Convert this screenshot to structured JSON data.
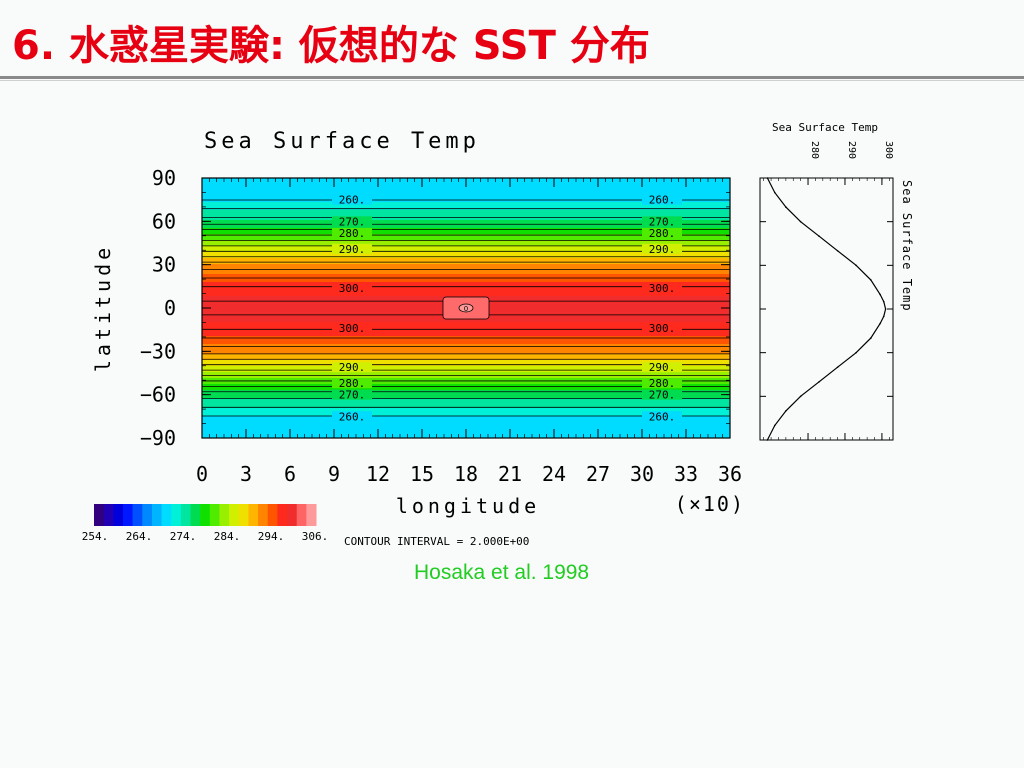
{
  "slide": {
    "title": "6. 水惑星実験: 仮想的な SST 分布",
    "title_color": "#e60012",
    "citation": "Hosaka et al. 1998",
    "citation_color": "#22cc22"
  },
  "chart_data": [
    {
      "type": "heatmap",
      "title": "Sea Surface Temp",
      "xlabel": "longitude",
      "ylabel": "latitude",
      "x_scale_note": "(×10)",
      "xlim": [
        0,
        36
      ],
      "ylim": [
        -90,
        90
      ],
      "x_ticks": [
        "0",
        "3",
        "6",
        "9",
        "12",
        "15",
        "18",
        "21",
        "24",
        "27",
        "30",
        "33",
        "36"
      ],
      "y_ticks": [
        "90",
        "60",
        "30",
        "0",
        "−30",
        "−60",
        "−90"
      ],
      "y_tick_values": [
        90,
        60,
        30,
        0,
        -30,
        -60,
        -90
      ],
      "contour_interval_text": "CONTOUR INTERVAL = 2.000E+00",
      "colorbar": {
        "labels": [
          "254.",
          "264.",
          "274.",
          "284.",
          "294.",
          "306."
        ],
        "min": 254,
        "max": 306,
        "colors": [
          "#30007e",
          "#2000b2",
          "#0000dc",
          "#0018ff",
          "#0050ff",
          "#0088ff",
          "#00b4ff",
          "#00dcff",
          "#00f0d8",
          "#00e6a0",
          "#00dc50",
          "#10e000",
          "#50ec00",
          "#98f000",
          "#d0f000",
          "#f0e000",
          "#ffb400",
          "#ff8400",
          "#ff5400",
          "#ff2a1e",
          "#f02c2c",
          "#ff6464",
          "#ff9a9a"
        ]
      },
      "contour_labels_left": [
        "260.",
        "270.",
        "280.",
        "290.",
        "300.",
        "300.",
        "290.",
        "280.",
        "270.",
        "260."
      ],
      "contour_labels_right": [
        "260.",
        "270.",
        "280.",
        "290.",
        "300.",
        "300.",
        "290.",
        "280.",
        "270.",
        "260."
      ],
      "contour_label_lats": [
        75,
        60,
        52,
        41,
        14,
        -14,
        -41,
        -52,
        -60,
        -75
      ],
      "zonal_profile": {
        "latitude": [
          90,
          75,
          60,
          45,
          30,
          15,
          5,
          0,
          -5,
          -15,
          -30,
          -45,
          -60,
          -75,
          -90
        ],
        "sst": [
          271,
          272,
          277,
          285,
          293,
          298,
          300,
          301,
          300,
          298,
          293,
          285,
          277,
          272,
          271
        ]
      },
      "warm_anomaly": {
        "longitude": 18,
        "latitude": 0,
        "label": "0"
      }
    },
    {
      "type": "line",
      "title": "Sea Surface Temp",
      "xlabel": "Sea Surface Temp",
      "x_ticks": [
        "280",
        "290",
        "300"
      ],
      "x_tick_values": [
        280,
        290,
        300
      ],
      "xlim": [
        267,
        303
      ],
      "ylim": [
        -90,
        90
      ],
      "series": [
        {
          "latitude": [
            90,
            80,
            70,
            60,
            50,
            40,
            30,
            20,
            10,
            5,
            0,
            -5,
            -10,
            -20,
            -30,
            -40,
            -50,
            -60,
            -70,
            -80,
            -90
          ],
          "sst": [
            269,
            271,
            274,
            278,
            283,
            288,
            293,
            297,
            299.5,
            300.5,
            301,
            300.5,
            299.5,
            297,
            293,
            288,
            283,
            278,
            274,
            271,
            269
          ]
        }
      ]
    }
  ]
}
